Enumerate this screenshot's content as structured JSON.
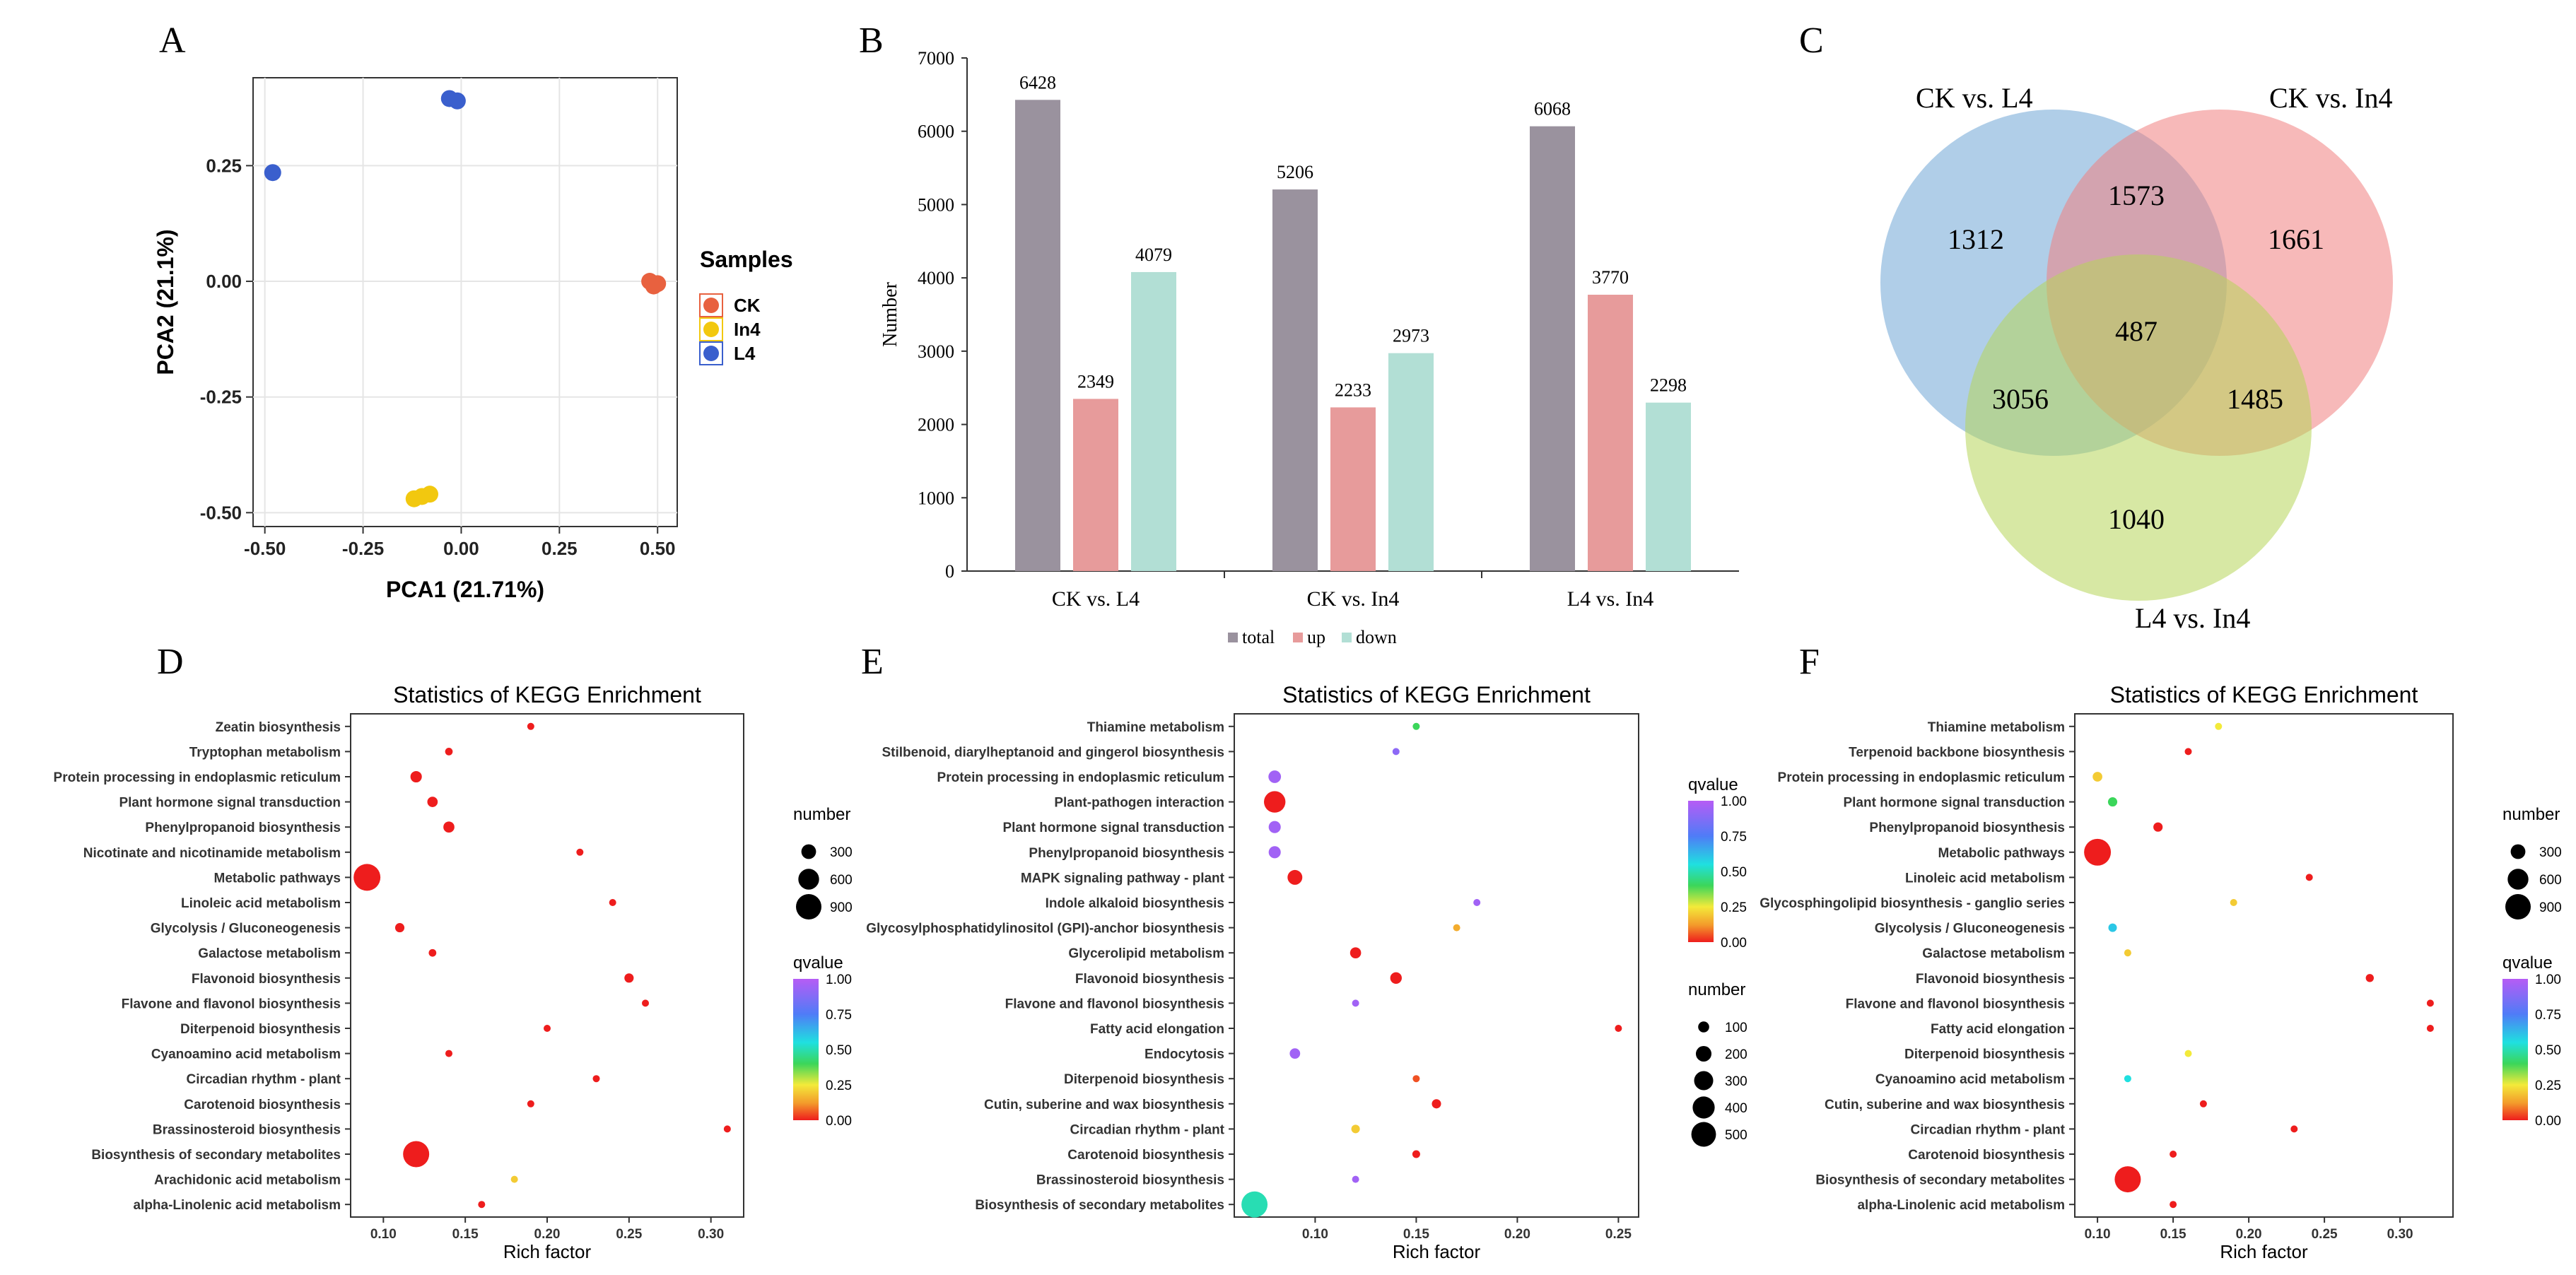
{
  "panel_labels": {
    "A": "A",
    "B": "B",
    "C": "C",
    "D": "D",
    "E": "E",
    "F": "F"
  },
  "chart_data": [
    {
      "panel": "A",
      "type": "scatter",
      "xlabel": "PCA1 (21.71%)",
      "ylabel": "PCA2 (21.1%)",
      "xlim": [
        -0.53,
        0.55
      ],
      "ylim": [
        -0.53,
        0.44
      ],
      "xticks": [
        -0.5,
        -0.25,
        0.0,
        0.25,
        0.5
      ],
      "xtick_labels": [
        "-0.50",
        "-0.25",
        "0.00",
        "0.25",
        "0.50"
      ],
      "yticks": [
        -0.5,
        -0.25,
        0.0,
        0.25
      ],
      "ytick_labels": [
        "-0.50",
        "-0.25",
        "0.00",
        "0.25"
      ],
      "grid": true,
      "legend_title": "Samples",
      "legend_position": "right",
      "series": [
        {
          "name": "CK",
          "color": "#e8613f",
          "points": [
            [
              0.48,
              0.0
            ],
            [
              0.49,
              -0.01
            ],
            [
              0.5,
              -0.005
            ]
          ]
        },
        {
          "name": "In4",
          "color": "#f2c80f",
          "points": [
            [
              -0.12,
              -0.47
            ],
            [
              -0.1,
              -0.465
            ],
            [
              -0.08,
              -0.46
            ]
          ]
        },
        {
          "name": "L4",
          "color": "#3a5fcd",
          "points": [
            [
              -0.48,
              0.235
            ],
            [
              -0.03,
              0.395
            ],
            [
              -0.01,
              0.39
            ]
          ]
        }
      ]
    },
    {
      "panel": "B",
      "type": "bar",
      "ylabel": "Number",
      "ylim": [
        0,
        7000
      ],
      "yticks": [
        0,
        1000,
        2000,
        3000,
        4000,
        5000,
        6000,
        7000
      ],
      "categories": [
        "CK vs. L4",
        "CK vs. In4",
        "L4 vs. In4"
      ],
      "legend_position": "bottom",
      "series": [
        {
          "name": "total",
          "color": "#9a929e",
          "values": [
            6428,
            5206,
            6068
          ]
        },
        {
          "name": "up",
          "color": "#e79b9b",
          "values": [
            2349,
            2233,
            3770
          ]
        },
        {
          "name": "down",
          "color": "#b2dfd5",
          "values": [
            4079,
            2973,
            2298
          ]
        }
      ]
    },
    {
      "panel": "C",
      "type": "venn",
      "sets": [
        {
          "name": "CK vs. L4",
          "color": "#6fa5d6"
        },
        {
          "name": "CK vs. In4",
          "color": "#f08080"
        },
        {
          "name": "L4 vs. In4",
          "color": "#b7d65a"
        }
      ],
      "regions": {
        "only_CK_vs_L4": 1312,
        "only_CK_vs_In4": 1661,
        "only_L4_vs_In4": 1040,
        "CK_vs_L4_and_CK_vs_In4": 1573,
        "CK_vs_L4_and_L4_vs_In4": 3056,
        "CK_vs_In4_and_L4_vs_In4": 1485,
        "all_three": 487
      }
    },
    {
      "panel": "D",
      "type": "scatter",
      "title": "Statistics of KEGG Enrichment",
      "xlabel": "Rich factor",
      "xlim": [
        0.08,
        0.32
      ],
      "xticks": [
        0.1,
        0.15,
        0.2,
        0.25,
        0.3
      ],
      "xtick_labels": [
        "0.10",
        "0.15",
        "0.20",
        "0.25",
        "0.30"
      ],
      "size_legend_title": "number",
      "size_legend": [
        300,
        600,
        900
      ],
      "color_legend_title": "qvalue",
      "color_legend_ticks": [
        "1.00",
        "0.75",
        "0.50",
        "0.25",
        "0.00"
      ],
      "pathways": [
        {
          "name": "Zeatin biosynthesis",
          "rich_factor": 0.19,
          "number": 60,
          "qvalue": 0.0
        },
        {
          "name": "Tryptophan metabolism",
          "rich_factor": 0.14,
          "number": 80,
          "qvalue": 0.0
        },
        {
          "name": "Protein processing in endoplasmic reticulum",
          "rich_factor": 0.12,
          "number": 180,
          "qvalue": 0.0
        },
        {
          "name": "Plant hormone signal transduction",
          "rich_factor": 0.13,
          "number": 150,
          "qvalue": 0.0
        },
        {
          "name": "Phenylpropanoid biosynthesis",
          "rich_factor": 0.14,
          "number": 170,
          "qvalue": 0.0
        },
        {
          "name": "Nicotinate and nicotinamide metabolism",
          "rich_factor": 0.22,
          "number": 30,
          "qvalue": 0.0
        },
        {
          "name": "Metabolic pathways",
          "rich_factor": 0.09,
          "number": 1000,
          "qvalue": 0.0
        },
        {
          "name": "Linoleic acid metabolism",
          "rich_factor": 0.24,
          "number": 50,
          "qvalue": 0.0
        },
        {
          "name": "Glycolysis / Gluconeogenesis",
          "rich_factor": 0.11,
          "number": 120,
          "qvalue": 0.0
        },
        {
          "name": "Galactose metabolism",
          "rich_factor": 0.13,
          "number": 80,
          "qvalue": 0.0
        },
        {
          "name": "Flavonoid biosynthesis",
          "rich_factor": 0.25,
          "number": 120,
          "qvalue": 0.0
        },
        {
          "name": "Flavone and flavonol biosynthesis",
          "rich_factor": 0.26,
          "number": 50,
          "qvalue": 0.0
        },
        {
          "name": "Diterpenoid biosynthesis",
          "rich_factor": 0.2,
          "number": 50,
          "qvalue": 0.0
        },
        {
          "name": "Cyanoamino acid metabolism",
          "rich_factor": 0.14,
          "number": 70,
          "qvalue": 0.0
        },
        {
          "name": "Circadian rhythm - plant",
          "rich_factor": 0.23,
          "number": 60,
          "qvalue": 0.0
        },
        {
          "name": "Carotenoid biosynthesis",
          "rich_factor": 0.19,
          "number": 50,
          "qvalue": 0.0
        },
        {
          "name": "Brassinosteroid biosynthesis",
          "rich_factor": 0.31,
          "number": 40,
          "qvalue": 0.0
        },
        {
          "name": "Biosynthesis of secondary metabolites",
          "rich_factor": 0.12,
          "number": 950,
          "qvalue": 0.0
        },
        {
          "name": "Arachidonic acid metabolism",
          "rich_factor": 0.18,
          "number": 30,
          "qvalue": 0.2
        },
        {
          "name": "alpha-Linolenic acid metabolism",
          "rich_factor": 0.16,
          "number": 60,
          "qvalue": 0.0
        }
      ]
    },
    {
      "panel": "E",
      "type": "scatter",
      "title": "Statistics of KEGG Enrichment",
      "xlabel": "Rich factor",
      "xlim": [
        0.06,
        0.26
      ],
      "xticks": [
        0.1,
        0.15,
        0.2,
        0.25
      ],
      "xtick_labels": [
        "0.10",
        "0.15",
        "0.20",
        "0.25"
      ],
      "size_legend_title": "number",
      "size_legend": [
        100,
        200,
        300,
        400,
        500
      ],
      "color_legend_title": "qvalue",
      "color_legend_ticks": [
        "1.00",
        "0.75",
        "0.50",
        "0.25",
        "0.00"
      ],
      "pathways": [
        {
          "name": "Thiamine metabolism",
          "rich_factor": 0.15,
          "number": 30,
          "qvalue": 0.4
        },
        {
          "name": "Stilbenoid, diarylheptanoid and gingerol biosynthesis",
          "rich_factor": 0.14,
          "number": 30,
          "qvalue": 0.9
        },
        {
          "name": "Protein processing in endoplasmic reticulum",
          "rich_factor": 0.08,
          "number": 130,
          "qvalue": 0.95
        },
        {
          "name": "Plant-pathogen interaction",
          "rich_factor": 0.08,
          "number": 380,
          "qvalue": 0.0
        },
        {
          "name": "Plant hormone signal transduction",
          "rich_factor": 0.08,
          "number": 120,
          "qvalue": 0.95
        },
        {
          "name": "Phenylpropanoid biosynthesis",
          "rich_factor": 0.08,
          "number": 120,
          "qvalue": 0.95
        },
        {
          "name": "MAPK signaling pathway - plant",
          "rich_factor": 0.09,
          "number": 180,
          "qvalue": 0.0
        },
        {
          "name": "Indole alkaloid biosynthesis",
          "rich_factor": 0.18,
          "number": 10,
          "qvalue": 0.95
        },
        {
          "name": "Glycosylphosphatidylinositol (GPI)-anchor biosynthesis",
          "rich_factor": 0.17,
          "number": 30,
          "qvalue": 0.15
        },
        {
          "name": "Glycerolipid metabolism",
          "rich_factor": 0.12,
          "number": 100,
          "qvalue": 0.0
        },
        {
          "name": "Flavonoid biosynthesis",
          "rich_factor": 0.14,
          "number": 110,
          "qvalue": 0.0
        },
        {
          "name": "Flavone and flavonol biosynthesis",
          "rich_factor": 0.12,
          "number": 30,
          "qvalue": 0.95
        },
        {
          "name": "Fatty acid elongation",
          "rich_factor": 0.25,
          "number": 40,
          "qvalue": 0.0
        },
        {
          "name": "Endocytosis",
          "rich_factor": 0.09,
          "number": 90,
          "qvalue": 0.95
        },
        {
          "name": "Diterpenoid biosynthesis",
          "rich_factor": 0.15,
          "number": 40,
          "qvalue": 0.05
        },
        {
          "name": "Cutin, suberine and wax biosynthesis",
          "rich_factor": 0.16,
          "number": 70,
          "qvalue": 0.0
        },
        {
          "name": "Circadian rhythm - plant",
          "rich_factor": 0.12,
          "number": 60,
          "qvalue": 0.2
        },
        {
          "name": "Carotenoid biosynthesis",
          "rich_factor": 0.15,
          "number": 50,
          "qvalue": 0.0
        },
        {
          "name": "Brassinosteroid biosynthesis",
          "rich_factor": 0.12,
          "number": 30,
          "qvalue": 0.95
        },
        {
          "name": "Biosynthesis of secondary metabolites",
          "rich_factor": 0.07,
          "number": 560,
          "qvalue": 0.5
        }
      ]
    },
    {
      "panel": "F",
      "type": "scatter",
      "title": "Statistics of KEGG Enrichment",
      "xlabel": "Rich factor",
      "xlim": [
        0.085,
        0.335
      ],
      "xticks": [
        0.1,
        0.15,
        0.2,
        0.25,
        0.3
      ],
      "xtick_labels": [
        "0.10",
        "0.15",
        "0.20",
        "0.25",
        "0.30"
      ],
      "size_legend_title": "number",
      "size_legend": [
        300,
        600,
        900
      ],
      "color_legend_title": "qvalue",
      "color_legend_ticks": [
        "1.00",
        "0.75",
        "0.50",
        "0.25",
        "0.00"
      ],
      "pathways": [
        {
          "name": "Thiamine metabolism",
          "rich_factor": 0.18,
          "number": 30,
          "qvalue": 0.25
        },
        {
          "name": "Terpenoid backbone biosynthesis",
          "rich_factor": 0.16,
          "number": 60,
          "qvalue": 0.0
        },
        {
          "name": "Protein processing in endoplasmic reticulum",
          "rich_factor": 0.1,
          "number": 130,
          "qvalue": 0.2
        },
        {
          "name": "Plant hormone signal transduction",
          "rich_factor": 0.11,
          "number": 120,
          "qvalue": 0.4
        },
        {
          "name": "Phenylpropanoid biosynthesis",
          "rich_factor": 0.14,
          "number": 120,
          "qvalue": 0.0
        },
        {
          "name": "Metabolic pathways",
          "rich_factor": 0.1,
          "number": 1000,
          "qvalue": 0.0
        },
        {
          "name": "Linoleic acid metabolism",
          "rich_factor": 0.24,
          "number": 40,
          "qvalue": 0.0
        },
        {
          "name": "Glycosphingolipid biosynthesis - ganglio series",
          "rich_factor": 0.19,
          "number": 20,
          "qvalue": 0.2
        },
        {
          "name": "Glycolysis / Gluconeogenesis",
          "rich_factor": 0.11,
          "number": 100,
          "qvalue": 0.6
        },
        {
          "name": "Galactose metabolism",
          "rich_factor": 0.12,
          "number": 70,
          "qvalue": 0.2
        },
        {
          "name": "Flavonoid biosynthesis",
          "rich_factor": 0.28,
          "number": 90,
          "qvalue": 0.0
        },
        {
          "name": "Flavone and flavonol biosynthesis",
          "rich_factor": 0.32,
          "number": 40,
          "qvalue": 0.0
        },
        {
          "name": "Fatty acid elongation",
          "rich_factor": 0.32,
          "number": 40,
          "qvalue": 0.0
        },
        {
          "name": "Diterpenoid biosynthesis",
          "rich_factor": 0.16,
          "number": 40,
          "qvalue": 0.25
        },
        {
          "name": "Cyanoamino acid metabolism",
          "rich_factor": 0.12,
          "number": 60,
          "qvalue": 0.55
        },
        {
          "name": "Cutin, suberine and wax biosynthesis",
          "rich_factor": 0.17,
          "number": 60,
          "qvalue": 0.0
        },
        {
          "name": "Circadian rhythm - plant",
          "rich_factor": 0.23,
          "number": 50,
          "qvalue": 0.0
        },
        {
          "name": "Carotenoid biosynthesis",
          "rich_factor": 0.15,
          "number": 50,
          "qvalue": 0.0
        },
        {
          "name": "Biosynthesis of secondary metabolites",
          "rich_factor": 0.12,
          "number": 950,
          "qvalue": 0.0
        },
        {
          "name": "alpha-Linolenic acid metabolism",
          "rich_factor": 0.15,
          "number": 60,
          "qvalue": 0.0
        }
      ]
    }
  ]
}
